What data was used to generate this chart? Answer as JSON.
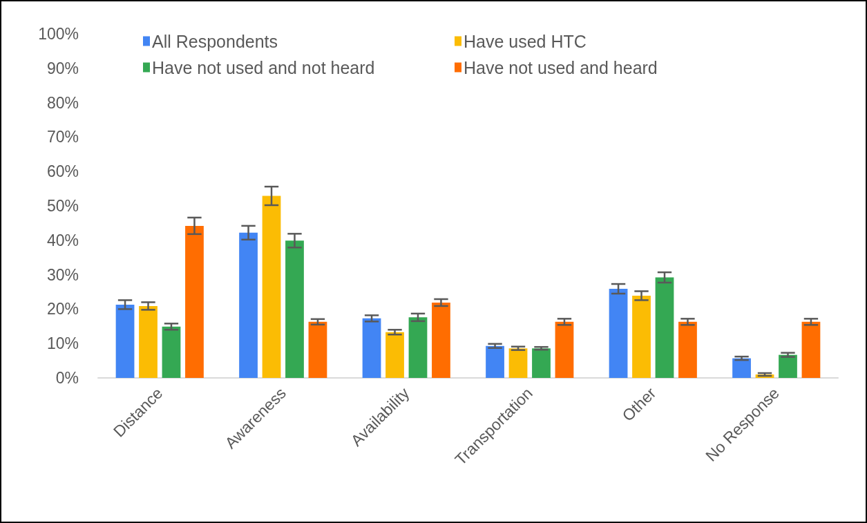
{
  "chart_data": {
    "type": "bar",
    "categories": [
      "Distance",
      "Awareness",
      "Availability",
      "Transportation",
      "Other",
      "No Response"
    ],
    "series": [
      {
        "name": "All Respondents",
        "color": "#4285f4",
        "values": [
          21.3,
          42.2,
          17.3,
          9.3,
          25.9,
          5.7
        ],
        "errors": [
          1.3,
          2,
          0.9,
          0.6,
          1.4,
          0.5
        ]
      },
      {
        "name": "Have used HTC",
        "color": "#fbbc04",
        "values": [
          20.9,
          52.9,
          13.3,
          8.6,
          23.9,
          1.0
        ],
        "errors": [
          1.1,
          2.7,
          0.7,
          0.5,
          1.3,
          0.4
        ]
      },
      {
        "name": "Have not used and not heard",
        "color": "#34a853",
        "values": [
          14.9,
          39.9,
          17.6,
          8.6,
          29.2,
          6.7
        ],
        "errors": [
          0.9,
          2,
          1.1,
          0.4,
          1.5,
          0.6
        ]
      },
      {
        "name": "Have not used and heard",
        "color": "#ff6d01",
        "values": [
          44.2,
          16.3,
          21.9,
          16.3,
          16.3,
          16.3
        ],
        "errors": [
          2.4,
          0.8,
          1,
          0.9,
          0.9,
          0.9
        ]
      }
    ],
    "ylim": [
      0,
      100
    ],
    "yticks": [
      {
        "value": 0,
        "label": "0%"
      },
      {
        "value": 10,
        "label": "10%"
      },
      {
        "value": 20,
        "label": "20%"
      },
      {
        "value": 30,
        "label": "30%"
      },
      {
        "value": 40,
        "label": "40%"
      },
      {
        "value": 50,
        "label": "50%"
      },
      {
        "value": 60,
        "label": "60%"
      },
      {
        "value": 70,
        "label": "70%"
      },
      {
        "value": 80,
        "label": "80%"
      },
      {
        "value": 90,
        "label": "90%"
      },
      {
        "value": 100,
        "label": "100%"
      }
    ],
    "grid": false,
    "legend": "top left"
  }
}
